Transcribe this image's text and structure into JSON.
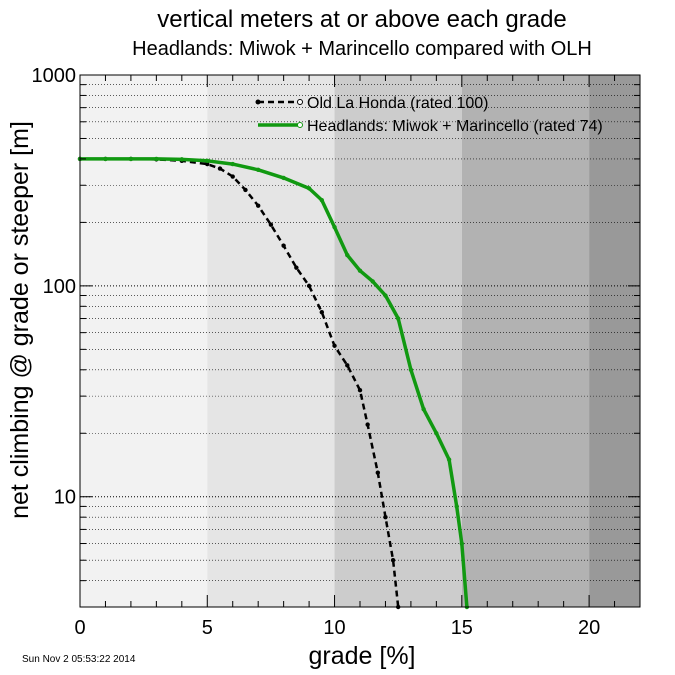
{
  "chart_data": {
    "type": "line",
    "title": "vertical meters at or above each grade",
    "subtitle": "Headlands: Miwok + Marincello compared with OLH",
    "xlabel": "grade [%]",
    "ylabel": "net climbing @ grade or steeper [m]",
    "xlim": [
      0,
      22
    ],
    "ylim": [
      3,
      1000
    ],
    "yscale": "log",
    "x_ticks": [
      0,
      5,
      10,
      15,
      20
    ],
    "x_tick_labels": [
      "0",
      "5",
      "10",
      "15",
      "20"
    ],
    "y_ticks": [
      10,
      100,
      1000
    ],
    "y_tick_labels": [
      "10",
      "100",
      "1000"
    ],
    "grid": "horizontal dotted at log decades",
    "background_bands": [
      {
        "from": 0,
        "to": 5,
        "color": "#f2f2f2"
      },
      {
        "from": 5,
        "to": 10,
        "color": "#e5e5e5"
      },
      {
        "from": 10,
        "to": 15,
        "color": "#cccccc"
      },
      {
        "from": 15,
        "to": 20,
        "color": "#b2b2b2"
      },
      {
        "from": 20,
        "to": 22,
        "color": "#999999"
      }
    ],
    "legend_position": "top-right",
    "series": [
      {
        "name": "Old La Honda (rated 100)",
        "color": "#000000",
        "style": "dashed",
        "x": [
          0,
          1,
          2,
          3,
          4,
          5,
          5.5,
          6,
          6.5,
          7,
          7.5,
          8,
          8.5,
          9,
          9.5,
          10,
          10.5,
          11,
          11.3,
          11.7,
          12,
          12.3,
          12.5
        ],
        "y": [
          400,
          400,
          400,
          398,
          392,
          378,
          360,
          330,
          285,
          240,
          195,
          155,
          122,
          100,
          75,
          52,
          42,
          32,
          22,
          13,
          8,
          5,
          3
        ]
      },
      {
        "name": "Headlands: Miwok + Marincello (rated 74)",
        "color": "#119911",
        "style": "solid",
        "x": [
          0,
          1,
          2,
          3,
          4,
          5,
          6,
          7,
          8,
          9,
          9.5,
          10,
          10.5,
          11,
          11.5,
          12,
          12.5,
          13,
          13.5,
          14,
          14.5,
          14.8,
          15,
          15.2
        ],
        "y": [
          400,
          400,
          400,
          400,
          398,
          392,
          378,
          355,
          325,
          290,
          255,
          190,
          140,
          118,
          105,
          90,
          70,
          40,
          26,
          20,
          15,
          9,
          6,
          3
        ]
      }
    ]
  },
  "timestamp": "Sun Nov  2 05:53:22 2014"
}
